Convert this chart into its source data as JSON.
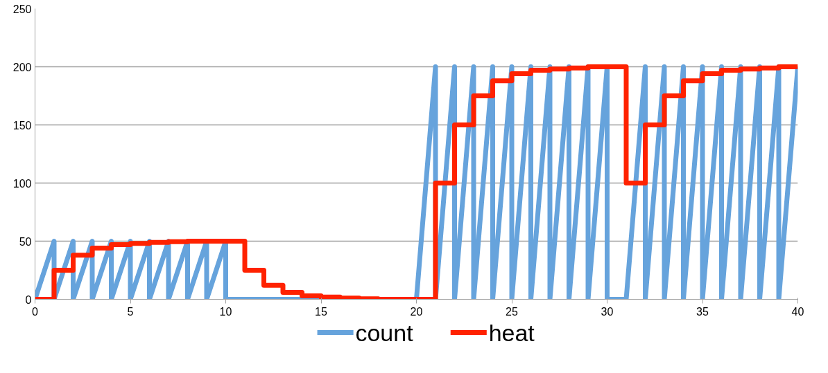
{
  "chart_data": {
    "type": "line",
    "xlim": [
      0,
      40
    ],
    "ylim": [
      0,
      250
    ],
    "xticks": [
      0,
      5,
      10,
      15,
      20,
      25,
      30,
      35,
      40
    ],
    "yticks": [
      0,
      50,
      100,
      150,
      200,
      250
    ],
    "grid": "y",
    "legend": "bottom",
    "marker": "none",
    "line_style": "solid",
    "series": [
      {
        "name": "count",
        "color": "#66a3dc",
        "x": [
          0,
          1,
          1,
          2,
          2,
          3,
          3,
          4,
          4,
          5,
          5,
          6,
          6,
          7,
          7,
          8,
          8,
          9,
          9,
          10,
          10,
          20,
          21,
          21,
          22,
          22,
          23,
          23,
          24,
          24,
          25,
          25,
          26,
          26,
          27,
          27,
          28,
          28,
          29,
          29,
          30,
          30,
          31,
          32,
          32,
          33,
          33,
          34,
          34,
          35,
          35,
          36,
          36,
          37,
          37,
          38,
          38,
          39,
          39,
          40
        ],
        "values": [
          0,
          50,
          0,
          50,
          0,
          50,
          0,
          50,
          0,
          50,
          0,
          50,
          0,
          50,
          0,
          50,
          0,
          50,
          0,
          50,
          0,
          0,
          200,
          0,
          200,
          0,
          200,
          0,
          200,
          0,
          200,
          0,
          200,
          0,
          200,
          0,
          200,
          0,
          200,
          0,
          200,
          0,
          0,
          200,
          0,
          200,
          0,
          200,
          0,
          200,
          0,
          200,
          0,
          200,
          0,
          200,
          0,
          200,
          0,
          200
        ]
      },
      {
        "name": "heat",
        "type": "step",
        "color": "#ff2200",
        "x": [
          0,
          1,
          2,
          3,
          4,
          5,
          6,
          7,
          8,
          9,
          10,
          11,
          12,
          13,
          14,
          15,
          16,
          17,
          18,
          19,
          20,
          21,
          22,
          23,
          24,
          25,
          26,
          27,
          28,
          29,
          30,
          31,
          32,
          33,
          34,
          35,
          36,
          37,
          38,
          39,
          40
        ],
        "values": [
          0,
          25,
          38,
          44,
          47,
          48,
          49,
          49.5,
          50,
          50,
          50,
          25,
          12,
          6,
          3,
          2,
          1,
          0.5,
          0,
          0,
          0,
          100,
          150,
          175,
          188,
          194,
          197,
          198,
          199,
          200,
          200,
          100,
          150,
          175,
          188,
          194,
          197,
          198,
          199,
          200,
          200
        ]
      }
    ]
  }
}
